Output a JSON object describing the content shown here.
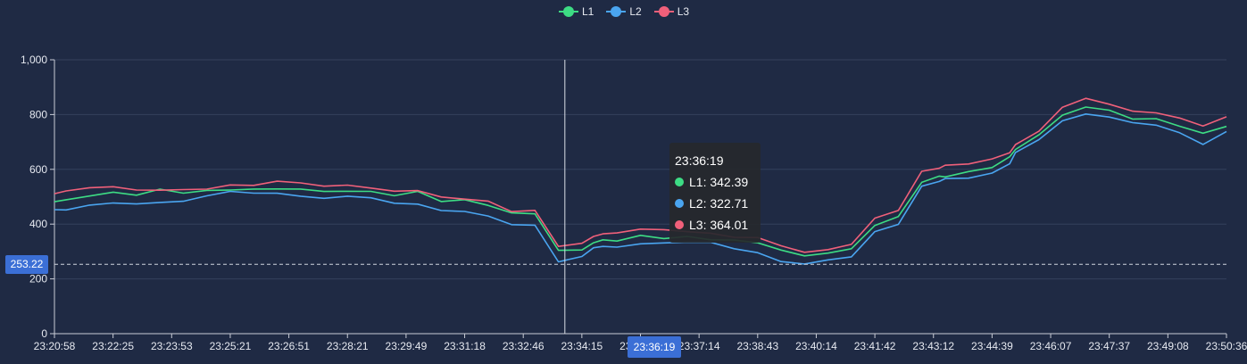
{
  "chart_data": {
    "type": "line",
    "title": "",
    "xlabel": "",
    "ylabel": "",
    "ylim": [
      0,
      1000
    ],
    "yticks": [
      0,
      200,
      400,
      600,
      800,
      1000
    ],
    "ytick_labels": [
      "0",
      "200",
      "400",
      "600",
      "800",
      "1,000"
    ],
    "xtick_labels": [
      "23:20:58",
      "23:22:25",
      "23:23:53",
      "23:25:21",
      "23:26:51",
      "23:28:21",
      "23:29:49",
      "23:31:18",
      "23:32:46",
      "23:34:15",
      "23:35:44",
      "23:37:14",
      "23:38:43",
      "23:40:14",
      "23:41:42",
      "23:43:12",
      "23:44:39",
      "23:46:07",
      "23:47:37",
      "23:49:08",
      "23:50:36"
    ],
    "grid": true,
    "legend_position": "top-center",
    "x_fraction": [
      0.0,
      0.01,
      0.03,
      0.05,
      0.07,
      0.09,
      0.11,
      0.13,
      0.15,
      0.17,
      0.19,
      0.21,
      0.23,
      0.25,
      0.27,
      0.29,
      0.31,
      0.33,
      0.35,
      0.37,
      0.39,
      0.41,
      0.43,
      0.45,
      0.46,
      0.468,
      0.48,
      0.5,
      0.52,
      0.54,
      0.56,
      0.58,
      0.6,
      0.62,
      0.64,
      0.66,
      0.68,
      0.7,
      0.72,
      0.74,
      0.755,
      0.76,
      0.78,
      0.8,
      0.815,
      0.82,
      0.84,
      0.86,
      0.88,
      0.9,
      0.92,
      0.94,
      0.96,
      0.98,
      1.0
    ],
    "series": [
      {
        "name": "L1",
        "color": "#3ddc84",
        "values": [
          480,
          490,
          505,
          510,
          515,
          518,
          520,
          520,
          525,
          528,
          530,
          525,
          522,
          520,
          515,
          512,
          510,
          490,
          485,
          470,
          440,
          440,
          300,
          310,
          330,
          340,
          345,
          350,
          355,
          350,
          345,
          340,
          335,
          300,
          290,
          290,
          310,
          400,
          420,
          560,
          570,
          575,
          590,
          610,
          640,
          680,
          720,
          800,
          830,
          810,
          790,
          780,
          760,
          730,
          760
        ]
      },
      {
        "name": "L2",
        "color": "#4aa5f0",
        "values": [
          455,
          460,
          465,
          470,
          475,
          480,
          490,
          505,
          510,
          512,
          515,
          505,
          500,
          495,
          490,
          480,
          475,
          455,
          445,
          420,
          400,
          400,
          265,
          285,
          305,
          315,
          322,
          330,
          335,
          330,
          325,
          315,
          300,
          265,
          255,
          260,
          280,
          380,
          400,
          540,
          550,
          560,
          575,
          590,
          620,
          660,
          700,
          780,
          810,
          790,
          770,
          755,
          730,
          700,
          740
        ]
      },
      {
        "name": "L3",
        "color": "#f0607a",
        "values": [
          505,
          520,
          525,
          530,
          525,
          520,
          530,
          535,
          545,
          550,
          560,
          548,
          540,
          535,
          525,
          518,
          515,
          500,
          495,
          485,
          455,
          455,
          320,
          335,
          350,
          360,
          365,
          372,
          378,
          372,
          365,
          360,
          355,
          325,
          305,
          305,
          325,
          420,
          440,
          590,
          600,
          610,
          625,
          640,
          665,
          700,
          740,
          830,
          860,
          830,
          810,
          800,
          780,
          760,
          790
        ]
      }
    ],
    "crosshair": {
      "x_label": "23:36:19",
      "x_fraction": 0.4355,
      "y_value": 253.22,
      "y_label": "253.22"
    },
    "tooltip": {
      "title": "23:36:19",
      "rows": [
        {
          "series": "L1",
          "text": "L1: 342.39"
        },
        {
          "series": "L2",
          "text": "L2: 322.71"
        },
        {
          "series": "L3",
          "text": "L3: 364.01"
        }
      ]
    }
  }
}
